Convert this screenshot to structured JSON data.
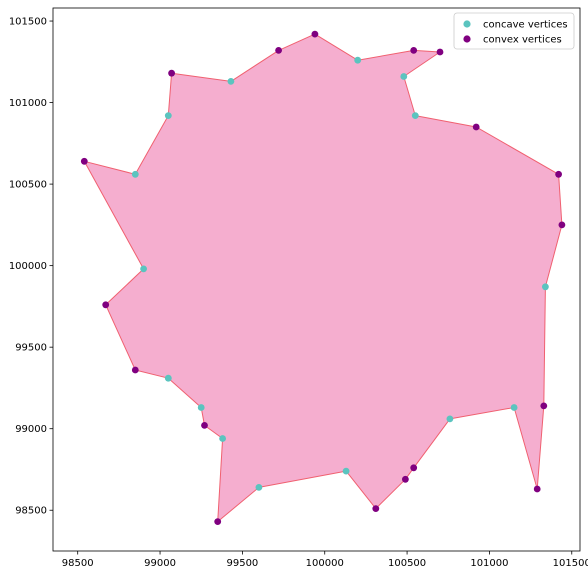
{
  "chart_data": {
    "type": "scatter",
    "title": "",
    "xlabel": "",
    "ylabel": "",
    "xlim": [
      98350,
      101550
    ],
    "ylim": [
      98250,
      101580
    ],
    "x_ticks": [
      98500,
      99000,
      99500,
      100000,
      100500,
      101000,
      101500
    ],
    "y_ticks": [
      98500,
      99000,
      99500,
      100000,
      100500,
      101000,
      101500
    ],
    "grid": false,
    "legend_position": "top-right",
    "polygon": {
      "fill": "#f5aecf",
      "edge": "#f06070",
      "vertices": [
        [
          99350,
          98430
        ],
        [
          99600,
          98640
        ],
        [
          100130,
          98740
        ],
        [
          100310,
          98510
        ],
        [
          100490,
          98690
        ],
        [
          100540,
          98760
        ],
        [
          100760,
          99060
        ],
        [
          101150,
          99130
        ],
        [
          101290,
          98630
        ],
        [
          101330,
          99140
        ],
        [
          101340,
          99870
        ],
        [
          101440,
          100250
        ],
        [
          101420,
          100560
        ],
        [
          100920,
          100850
        ],
        [
          100550,
          100920
        ],
        [
          100480,
          101160
        ],
        [
          100700,
          101310
        ],
        [
          100540,
          101320
        ],
        [
          100200,
          101260
        ],
        [
          99940,
          101420
        ],
        [
          99720,
          101320
        ],
        [
          99430,
          101130
        ],
        [
          99070,
          101180
        ],
        [
          99050,
          100920
        ],
        [
          98850,
          100560
        ],
        [
          98540,
          100640
        ],
        [
          98900,
          99980
        ],
        [
          98670,
          99760
        ],
        [
          98850,
          99360
        ],
        [
          99050,
          99310
        ],
        [
          99250,
          99130
        ],
        [
          99270,
          99020
        ],
        [
          99380,
          98940
        ]
      ]
    },
    "series": [
      {
        "name": "concave vertices",
        "color": "#5bc4bf",
        "points": [
          [
            99600,
            98640
          ],
          [
            100130,
            98740
          ],
          [
            100760,
            99060
          ],
          [
            101150,
            99130
          ],
          [
            101340,
            99870
          ],
          [
            100550,
            100920
          ],
          [
            100480,
            101160
          ],
          [
            100200,
            101260
          ],
          [
            99430,
            101130
          ],
          [
            99050,
            100920
          ],
          [
            98850,
            100560
          ],
          [
            98900,
            99980
          ],
          [
            99050,
            99310
          ],
          [
            99250,
            99130
          ],
          [
            99380,
            98940
          ]
        ]
      },
      {
        "name": "convex vertices",
        "color": "#800080",
        "points": [
          [
            99350,
            98430
          ],
          [
            100310,
            98510
          ],
          [
            100490,
            98690
          ],
          [
            100540,
            98760
          ],
          [
            101290,
            98630
          ],
          [
            101330,
            99140
          ],
          [
            101440,
            100250
          ],
          [
            101420,
            100560
          ],
          [
            100920,
            100850
          ],
          [
            100700,
            101310
          ],
          [
            100540,
            101320
          ],
          [
            99940,
            101420
          ],
          [
            99720,
            101320
          ],
          [
            99070,
            101180
          ],
          [
            98540,
            100640
          ],
          [
            98670,
            99760
          ],
          [
            98850,
            99360
          ],
          [
            99270,
            99020
          ]
        ]
      }
    ]
  }
}
